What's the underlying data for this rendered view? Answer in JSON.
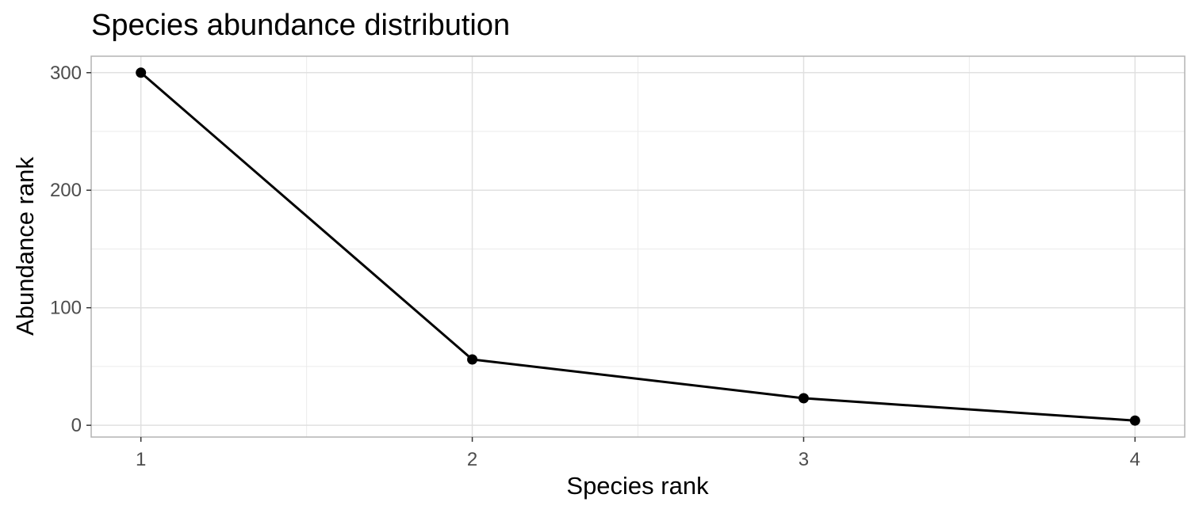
{
  "chart_data": {
    "type": "line",
    "title": "Species abundance distribution",
    "xlabel": "Species rank",
    "ylabel": "Abundance rank",
    "x": [
      1,
      2,
      3,
      4
    ],
    "series": [
      {
        "values": [
          300,
          56,
          23,
          4
        ]
      }
    ],
    "x_ticks": [
      "1",
      "2",
      "3",
      "4"
    ],
    "y_ticks": [
      "0",
      "100",
      "200",
      "300"
    ],
    "xlim": [
      0.85,
      4.15
    ],
    "ylim": [
      -10,
      314
    ],
    "grid": true,
    "markers": true,
    "line_color": "#000000",
    "marker_color": "#000000",
    "grid_color": "#e0e0e0",
    "panel_border_color": "#b3b3b3",
    "background_color": "#ffffff"
  }
}
